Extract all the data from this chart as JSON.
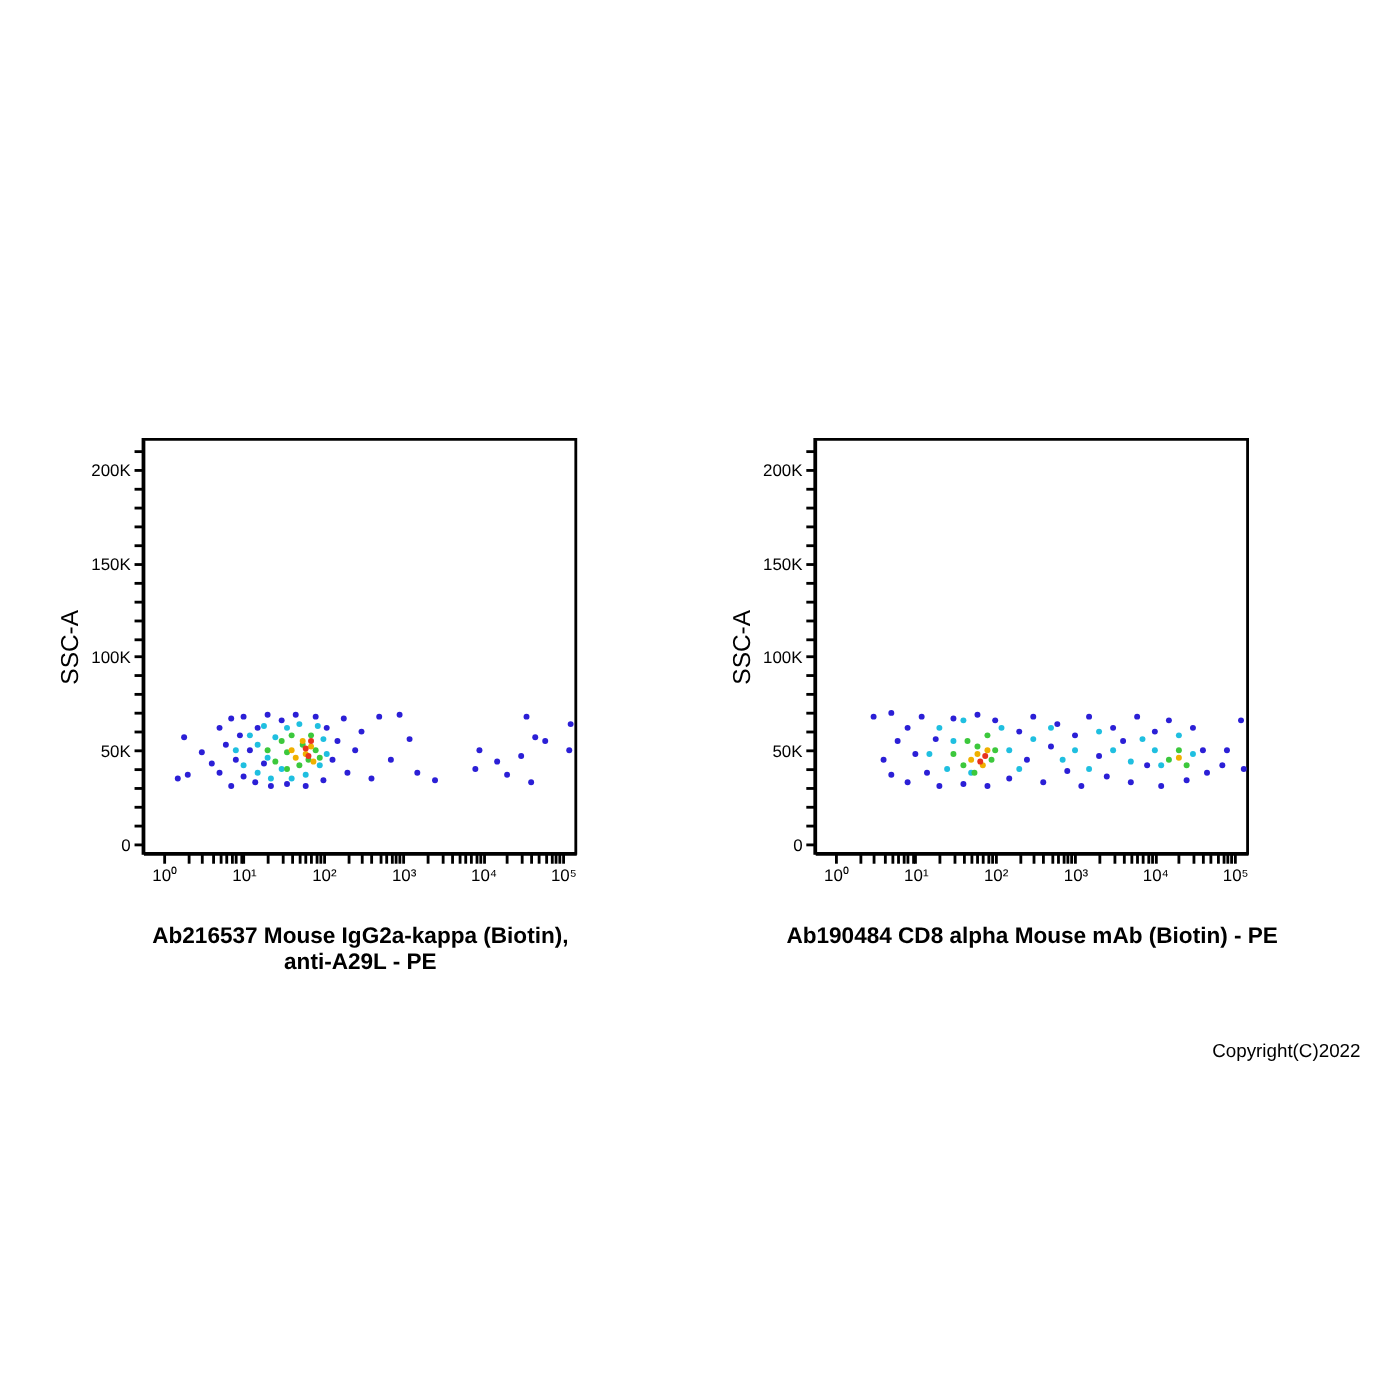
{
  "chart_data": [
    {
      "type": "scatter",
      "xlabel": "Ab216537 Mouse IgG2a-kappa (Biotin), anti-A29L - PE",
      "ylabel": "SSC-A",
      "log": "x",
      "marker": "circle",
      "xlim": [
        0.55,
        145000
      ],
      "ylim": [
        -5000,
        216000
      ],
      "xticks": [
        {
          "value": 1,
          "label": "10⁰"
        },
        {
          "value": 2,
          "label": null
        },
        {
          "value": 3,
          "label": null
        },
        {
          "value": 4,
          "label": null
        },
        {
          "value": 5,
          "label": null
        },
        {
          "value": 6,
          "label": null
        },
        {
          "value": 7,
          "label": null
        },
        {
          "value": 8,
          "label": null
        },
        {
          "value": 9,
          "label": null
        },
        {
          "value": 10,
          "label": "10¹"
        },
        {
          "value": 20,
          "label": null
        },
        {
          "value": 30,
          "label": null
        },
        {
          "value": 40,
          "label": null
        },
        {
          "value": 50,
          "label": null
        },
        {
          "value": 60,
          "label": null
        },
        {
          "value": 70,
          "label": null
        },
        {
          "value": 80,
          "label": null
        },
        {
          "value": 90,
          "label": null
        },
        {
          "value": 100,
          "label": "10²"
        },
        {
          "value": 200,
          "label": null
        },
        {
          "value": 300,
          "label": null
        },
        {
          "value": 400,
          "label": null
        },
        {
          "value": 500,
          "label": null
        },
        {
          "value": 600,
          "label": null
        },
        {
          "value": 700,
          "label": null
        },
        {
          "value": 800,
          "label": null
        },
        {
          "value": 900,
          "label": null
        },
        {
          "value": 1000,
          "label": "10³"
        },
        {
          "value": 2000,
          "label": null
        },
        {
          "value": 3000,
          "label": null
        },
        {
          "value": 4000,
          "label": null
        },
        {
          "value": 5000,
          "label": null
        },
        {
          "value": 6000,
          "label": null
        },
        {
          "value": 7000,
          "label": null
        },
        {
          "value": 8000,
          "label": null
        },
        {
          "value": 9000,
          "label": null
        },
        {
          "value": 10000,
          "label": "10⁴"
        },
        {
          "value": 20000,
          "label": null
        },
        {
          "value": 30000,
          "label": null
        },
        {
          "value": 40000,
          "label": null
        },
        {
          "value": 50000,
          "label": null
        },
        {
          "value": 60000,
          "label": null
        },
        {
          "value": 70000,
          "label": null
        },
        {
          "value": 80000,
          "label": null
        },
        {
          "value": 90000,
          "label": null
        },
        {
          "value": 100000,
          "label": "10⁵"
        }
      ],
      "yticks": [
        {
          "value": 0,
          "label": "0"
        },
        {
          "value": 10000,
          "label": null
        },
        {
          "value": 20000,
          "label": null
        },
        {
          "value": 30000,
          "label": null
        },
        {
          "value": 40000,
          "label": null
        },
        {
          "value": 50000,
          "label": "50K"
        },
        {
          "value": 60000,
          "label": null
        },
        {
          "value": 70000,
          "label": null
        },
        {
          "value": 80000,
          "label": null
        },
        {
          "value": 90000,
          "label": null
        },
        {
          "value": 100000,
          "label": "100K"
        },
        {
          "value": 110000,
          "label": null
        },
        {
          "value": 120000,
          "label": null
        },
        {
          "value": 130000,
          "label": null
        },
        {
          "value": 140000,
          "label": null
        },
        {
          "value": 150000,
          "label": "150K"
        },
        {
          "value": 160000,
          "label": null
        },
        {
          "value": 170000,
          "label": null
        },
        {
          "value": 180000,
          "label": null
        },
        {
          "value": 190000,
          "label": null
        },
        {
          "value": 200000,
          "label": "200K"
        },
        {
          "value": 210000,
          "label": null
        }
      ],
      "series": [
        {
          "color": "#2b1fd6",
          "x": [
            1.5,
            2,
            1.8,
            3,
            4,
            5,
            5,
            6,
            7,
            7,
            8,
            9,
            10,
            10,
            12,
            14,
            15,
            18,
            20,
            22,
            30,
            35,
            45,
            60,
            80,
            100,
            110,
            130,
            150,
            180,
            200,
            250,
            300,
            400,
            500,
            700,
            900,
            1200,
            1500,
            2500,
            8000,
            9000,
            15000,
            20000,
            30000,
            35000,
            40000,
            45000,
            60000,
            120000,
            125000
          ],
          "values": [
            35000,
            37000,
            57000,
            49000,
            43000,
            62000,
            38000,
            53000,
            67000,
            31000,
            45000,
            58000,
            36000,
            68000,
            50000,
            33000,
            62000,
            43000,
            69000,
            31000,
            66000,
            32000,
            69000,
            31000,
            68000,
            34000,
            62000,
            45000,
            55000,
            67000,
            38000,
            50000,
            60000,
            35000,
            68000,
            45000,
            69000,
            56000,
            38000,
            34000,
            40000,
            50000,
            44000,
            37000,
            47000,
            68000,
            33000,
            57000,
            55000,
            50000,
            64000
          ]
        },
        {
          "color": "#1fbfe0",
          "x": [
            8,
            10,
            12,
            15,
            15,
            18,
            20,
            22,
            25,
            30,
            35,
            40,
            50,
            60,
            85,
            90,
            100,
            110
          ],
          "values": [
            50000,
            42000,
            58000,
            38000,
            53000,
            63000,
            46000,
            35000,
            57000,
            40000,
            62000,
            35000,
            64000,
            37000,
            63000,
            42000,
            56000,
            48000
          ]
        },
        {
          "color": "#3cc83c",
          "x": [
            20,
            25,
            30,
            35,
            35,
            40,
            50,
            55,
            65,
            70,
            80,
            90
          ],
          "values": [
            50000,
            44000,
            55000,
            40000,
            49000,
            58000,
            42000,
            53000,
            45000,
            58000,
            50000,
            46000
          ]
        },
        {
          "color": "#f0b000",
          "x": [
            40,
            45,
            55,
            60,
            70,
            75
          ],
          "values": [
            50000,
            46000,
            55000,
            48000,
            52000,
            44000
          ]
        },
        {
          "color": "#e8321e",
          "x": [
            60,
            70,
            65
          ],
          "values": [
            51000,
            55000,
            47000
          ]
        }
      ]
    },
    {
      "type": "scatter",
      "xlabel": "Ab190484 CD8 alpha Mouse mAb (Biotin) - PE",
      "ylabel": "SSC-A",
      "log": "x",
      "marker": "circle",
      "xlim": [
        0.55,
        145000
      ],
      "ylim": [
        -5000,
        216000
      ],
      "xticks": [
        {
          "value": 1,
          "label": "10⁰"
        },
        {
          "value": 2,
          "label": null
        },
        {
          "value": 3,
          "label": null
        },
        {
          "value": 4,
          "label": null
        },
        {
          "value": 5,
          "label": null
        },
        {
          "value": 6,
          "label": null
        },
        {
          "value": 7,
          "label": null
        },
        {
          "value": 8,
          "label": null
        },
        {
          "value": 9,
          "label": null
        },
        {
          "value": 10,
          "label": "10¹"
        },
        {
          "value": 20,
          "label": null
        },
        {
          "value": 30,
          "label": null
        },
        {
          "value": 40,
          "label": null
        },
        {
          "value": 50,
          "label": null
        },
        {
          "value": 60,
          "label": null
        },
        {
          "value": 70,
          "label": null
        },
        {
          "value": 80,
          "label": null
        },
        {
          "value": 90,
          "label": null
        },
        {
          "value": 100,
          "label": "10²"
        },
        {
          "value": 200,
          "label": null
        },
        {
          "value": 300,
          "label": null
        },
        {
          "value": 400,
          "label": null
        },
        {
          "value": 500,
          "label": null
        },
        {
          "value": 600,
          "label": null
        },
        {
          "value": 700,
          "label": null
        },
        {
          "value": 800,
          "label": null
        },
        {
          "value": 900,
          "label": null
        },
        {
          "value": 1000,
          "label": "10³"
        },
        {
          "value": 2000,
          "label": null
        },
        {
          "value": 3000,
          "label": null
        },
        {
          "value": 4000,
          "label": null
        },
        {
          "value": 5000,
          "label": null
        },
        {
          "value": 6000,
          "label": null
        },
        {
          "value": 7000,
          "label": null
        },
        {
          "value": 8000,
          "label": null
        },
        {
          "value": 9000,
          "label": null
        },
        {
          "value": 10000,
          "label": "10⁴"
        },
        {
          "value": 20000,
          "label": null
        },
        {
          "value": 30000,
          "label": null
        },
        {
          "value": 40000,
          "label": null
        },
        {
          "value": 50000,
          "label": null
        },
        {
          "value": 60000,
          "label": null
        },
        {
          "value": 70000,
          "label": null
        },
        {
          "value": 80000,
          "label": null
        },
        {
          "value": 90000,
          "label": null
        },
        {
          "value": 100000,
          "label": "10⁵"
        }
      ],
      "yticks": [
        {
          "value": 0,
          "label": "0"
        },
        {
          "value": 10000,
          "label": null
        },
        {
          "value": 20000,
          "label": null
        },
        {
          "value": 30000,
          "label": null
        },
        {
          "value": 40000,
          "label": null
        },
        {
          "value": 50000,
          "label": "50K"
        },
        {
          "value": 60000,
          "label": null
        },
        {
          "value": 70000,
          "label": null
        },
        {
          "value": 80000,
          "label": null
        },
        {
          "value": 90000,
          "label": null
        },
        {
          "value": 100000,
          "label": "100K"
        },
        {
          "value": 110000,
          "label": null
        },
        {
          "value": 120000,
          "label": null
        },
        {
          "value": 130000,
          "label": null
        },
        {
          "value": 140000,
          "label": null
        },
        {
          "value": 150000,
          "label": "150K"
        },
        {
          "value": 160000,
          "label": null
        },
        {
          "value": 170000,
          "label": null
        },
        {
          "value": 180000,
          "label": null
        },
        {
          "value": 190000,
          "label": null
        },
        {
          "value": 200000,
          "label": "200K"
        },
        {
          "value": 210000,
          "label": null
        }
      ],
      "annotations": [
        "Copyright(C)2022"
      ],
      "series": [
        {
          "color": "#2b1fd6",
          "x": [
            3,
            4,
            5,
            5,
            6,
            8,
            8,
            10,
            12,
            14,
            18,
            20,
            30,
            40,
            60,
            80,
            100,
            150,
            200,
            250,
            300,
            400,
            500,
            600,
            800,
            1000,
            1200,
            1500,
            2000,
            2500,
            3000,
            4000,
            5000,
            6000,
            8000,
            10000,
            12000,
            15000,
            25000,
            30000,
            40000,
            45000,
            70000,
            80000,
            120000,
            130000
          ],
          "values": [
            68000,
            45000,
            37000,
            70000,
            55000,
            62000,
            33000,
            48000,
            68000,
            38000,
            56000,
            31000,
            67000,
            32000,
            69000,
            31000,
            66000,
            35000,
            60000,
            45000,
            68000,
            33000,
            52000,
            64000,
            39000,
            58000,
            31000,
            68000,
            47000,
            36000,
            62000,
            55000,
            33000,
            68000,
            42000,
            60000,
            31000,
            66000,
            34000,
            62000,
            50000,
            38000,
            42000,
            50000,
            66000,
            40000
          ]
        },
        {
          "color": "#1fbfe0",
          "x": [
            15,
            20,
            25,
            30,
            40,
            50,
            120,
            150,
            200,
            300,
            500,
            700,
            1000,
            1500,
            2000,
            3000,
            5000,
            7000,
            10000,
            12000,
            20000,
            30000
          ],
          "values": [
            48000,
            62000,
            40000,
            55000,
            66000,
            38000,
            62000,
            50000,
            40000,
            56000,
            62000,
            45000,
            50000,
            40000,
            60000,
            50000,
            44000,
            56000,
            50000,
            42000,
            58000,
            48000
          ]
        },
        {
          "color": "#3cc83c",
          "x": [
            30,
            40,
            45,
            55,
            60,
            80,
            90,
            100,
            15000,
            20000,
            25000
          ],
          "values": [
            48000,
            42000,
            55000,
            38000,
            52000,
            58000,
            45000,
            50000,
            45000,
            50000,
            42000
          ]
        },
        {
          "color": "#f0b000",
          "x": [
            50,
            60,
            70,
            80,
            20000
          ],
          "values": [
            45000,
            48000,
            42000,
            50000,
            46000
          ]
        },
        {
          "color": "#e8321e",
          "x": [
            65,
            75
          ],
          "values": [
            44000,
            47000
          ]
        }
      ]
    }
  ]
}
